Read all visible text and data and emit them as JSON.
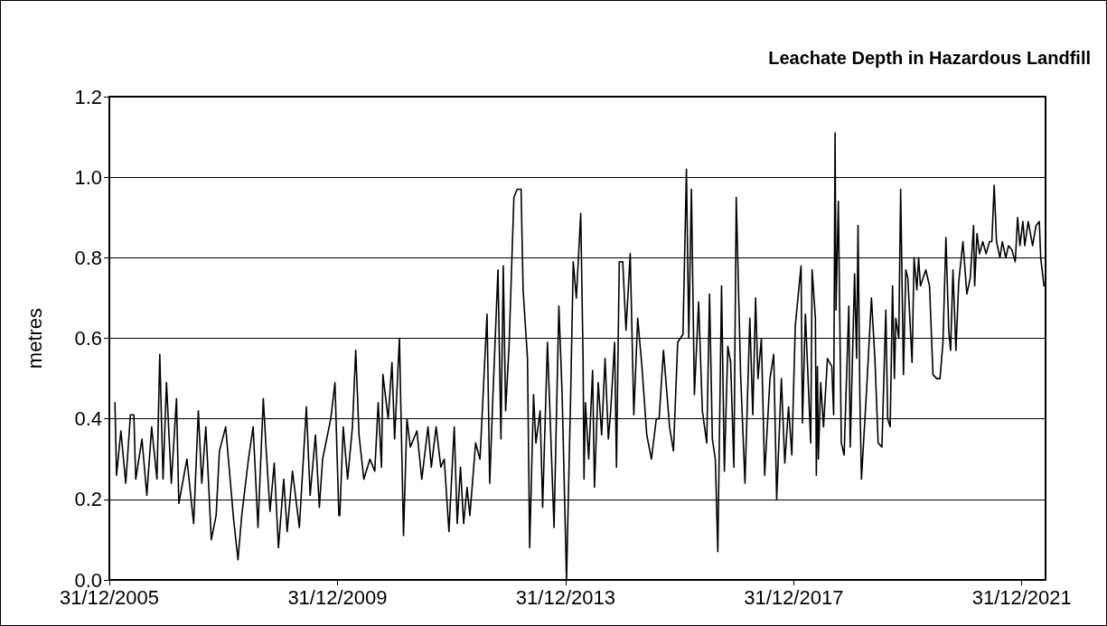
{
  "chart_data": {
    "type": "line",
    "title": "Leachate Depth in Hazardous Landfill",
    "ylabel": "metres",
    "x": [
      "2006-02-05",
      "2006-02-15",
      "2006-03-15",
      "2006-04-15",
      "2006-05-15",
      "2006-06-06",
      "2006-06-18",
      "2006-07-28",
      "2006-08-28",
      "2006-09-28",
      "2006-11-01",
      "2006-11-19",
      "2006-12-10",
      "2007-01-01",
      "2007-02-01",
      "2007-03-06",
      "2007-03-21",
      "2007-05-12",
      "2007-06-24",
      "2007-07-24",
      "2007-08-15",
      "2007-09-10",
      "2007-10-15",
      "2007-11-15",
      "2007-12-06",
      "2008-01-15",
      "2008-02-06",
      "2008-03-06",
      "2008-04-03",
      "2008-04-27",
      "2008-06-09",
      "2008-07-09",
      "2008-08-09",
      "2008-09-12",
      "2008-10-01",
      "2008-10-25",
      "2008-11-21",
      "2008-12-18",
      "2009-01-21",
      "2009-02-12",
      "2009-03-18",
      "2009-05-01",
      "2009-06-15",
      "2009-07-09",
      "2009-08-12",
      "2009-09-06",
      "2009-09-27",
      "2009-11-18",
      "2009-12-15",
      "2010-01-09",
      "2010-01-15",
      "2010-02-06",
      "2010-03-06",
      "2010-04-06",
      "2010-04-27",
      "2010-05-18",
      "2010-06-18",
      "2010-07-27",
      "2010-08-27",
      "2010-09-18",
      "2010-10-09",
      "2010-10-18",
      "2010-11-21",
      "2010-12-15",
      "2011-01-01",
      "2011-02-01",
      "2011-02-27",
      "2011-03-21",
      "2011-04-12",
      "2011-05-24",
      "2011-06-24",
      "2011-08-03",
      "2011-08-24",
      "2011-09-24",
      "2011-10-24",
      "2011-11-15",
      "2011-12-15",
      "2012-01-18",
      "2012-02-06",
      "2012-02-27",
      "2012-03-18",
      "2012-04-09",
      "2012-04-27",
      "2012-06-03",
      "2012-07-01",
      "2012-08-01",
      "2012-08-15",
      "2012-09-01",
      "2012-09-21",
      "2012-10-24",
      "2012-11-12",
      "2012-11-27",
      "2012-12-12",
      "2013-01-03",
      "2013-02-03",
      "2013-02-24",
      "2013-03-21",
      "2013-04-03",
      "2013-05-01",
      "2013-05-15",
      "2013-06-09",
      "2013-06-24",
      "2013-07-21",
      "2013-08-06",
      "2013-09-06",
      "2013-10-18",
      "2013-11-18",
      "2013-12-09",
      "2014-01-06",
      "2014-02-01",
      "2014-02-18",
      "2014-03-10",
      "2014-04-07",
      "2014-04-22",
      "2014-04-28",
      "2014-05-07",
      "2014-05-28",
      "2014-06-22",
      "2014-07-04",
      "2014-07-28",
      "2014-08-19",
      "2014-09-10",
      "2014-10-01",
      "2014-10-16",
      "2014-11-10",
      "2014-11-22",
      "2014-12-10",
      "2015-01-01",
      "2015-01-22",
      "2015-02-18",
      "2015-03-13",
      "2015-04-07",
      "2015-05-04",
      "2015-06-04",
      "2015-07-04",
      "2015-08-04",
      "2015-08-22",
      "2015-09-19",
      "2015-10-28",
      "2015-11-22",
      "2015-12-19",
      "2016-01-22",
      "2016-02-13",
      "2016-02-28",
      "2016-03-16",
      "2016-04-04",
      "2016-05-01",
      "2016-05-25",
      "2016-06-22",
      "2016-07-10",
      "2016-07-28",
      "2016-08-16",
      "2016-09-01",
      "2016-09-25",
      "2016-10-13",
      "2016-11-04",
      "2016-11-22",
      "2016-12-13",
      "2016-12-28",
      "2017-01-25",
      "2017-02-22",
      "2017-03-25",
      "2017-04-13",
      "2017-05-01",
      "2017-05-16",
      "2017-06-07",
      "2017-06-28",
      "2017-08-01",
      "2017-08-25",
      "2017-09-13",
      "2017-10-13",
      "2017-11-04",
      "2017-11-28",
      "2017-12-19",
      "2018-01-10",
      "2018-02-16",
      "2018-02-25",
      "2018-03-16",
      "2018-04-19",
      "2018-04-28",
      "2018-05-19",
      "2018-05-25",
      "2018-06-01",
      "2018-06-07",
      "2018-06-22",
      "2018-07-10",
      "2018-08-04",
      "2018-09-01",
      "2018-09-13",
      "2018-09-22",
      "2018-09-28",
      "2018-10-13",
      "2018-11-01",
      "2018-11-19",
      "2018-12-01",
      "2018-12-19",
      "2018-12-28",
      "2019-01-25",
      "2019-02-07",
      "2019-02-16",
      "2019-02-28",
      "2019-03-10",
      "2019-04-13",
      "2019-05-13",
      "2019-06-04",
      "2019-06-25",
      "2019-07-19",
      "2019-08-13",
      "2019-08-25",
      "2019-09-10",
      "2019-09-25",
      "2019-10-07",
      "2019-10-16",
      "2019-11-04",
      "2019-11-16",
      "2019-12-04",
      "2019-12-19",
      "2020-01-01",
      "2020-01-28",
      "2020-02-10",
      "2020-02-28",
      "2020-03-10",
      "2020-03-22",
      "2020-04-25",
      "2020-05-19",
      "2020-06-10",
      "2020-07-04",
      "2020-07-25",
      "2020-08-13",
      "2020-09-01",
      "2020-09-19",
      "2020-10-01",
      "2020-10-16",
      "2020-11-04",
      "2020-11-22",
      "2020-12-19",
      "2021-01-13",
      "2021-02-04",
      "2021-02-25",
      "2021-03-04",
      "2021-03-19",
      "2021-04-04",
      "2021-04-25",
      "2021-05-16",
      "2021-06-07",
      "2021-06-22",
      "2021-07-07",
      "2021-07-22",
      "2021-08-13",
      "2021-08-28",
      "2021-09-19",
      "2021-10-07",
      "2021-10-28",
      "2021-11-19",
      "2021-12-04",
      "2021-12-19",
      "2022-01-07",
      "2022-01-19",
      "2022-02-10",
      "2022-03-10",
      "2022-04-01",
      "2022-04-22",
      "2022-05-01",
      "2022-05-22"
    ],
    "series": [
      {
        "color": "#000000",
        "values": [
          0.44,
          0.26,
          0.37,
          0.24,
          0.41,
          0.41,
          0.25,
          0.35,
          0.21,
          0.38,
          0.25,
          0.56,
          0.25,
          0.49,
          0.24,
          0.45,
          0.19,
          0.3,
          0.14,
          0.42,
          0.24,
          0.38,
          0.1,
          0.16,
          0.32,
          0.38,
          0.28,
          0.15,
          0.05,
          0.16,
          0.3,
          0.38,
          0.13,
          0.45,
          0.32,
          0.17,
          0.29,
          0.08,
          0.25,
          0.12,
          0.27,
          0.13,
          0.43,
          0.21,
          0.36,
          0.18,
          0.3,
          0.4,
          0.49,
          0.16,
          0.16,
          0.38,
          0.25,
          0.38,
          0.57,
          0.36,
          0.25,
          0.3,
          0.27,
          0.44,
          0.28,
          0.51,
          0.4,
          0.54,
          0.35,
          0.6,
          0.11,
          0.4,
          0.33,
          0.37,
          0.25,
          0.38,
          0.28,
          0.38,
          0.28,
          0.3,
          0.12,
          0.38,
          0.14,
          0.28,
          0.14,
          0.23,
          0.16,
          0.34,
          0.3,
          0.55,
          0.66,
          0.24,
          0.45,
          0.77,
          0.35,
          0.78,
          0.42,
          0.58,
          0.95,
          0.97,
          0.97,
          0.72,
          0.55,
          0.08,
          0.46,
          0.34,
          0.42,
          0.18,
          0.59,
          0.13,
          0.68,
          0.46,
          0.0,
          0.45,
          0.79,
          0.7,
          0.91,
          0.55,
          0.25,
          0.44,
          0.3,
          0.52,
          0.23,
          0.49,
          0.36,
          0.55,
          0.35,
          0.42,
          0.59,
          0.28,
          0.79,
          0.79,
          0.62,
          0.81,
          0.41,
          0.65,
          0.53,
          0.36,
          0.3,
          0.4,
          0.4,
          0.57,
          0.38,
          0.32,
          0.59,
          0.61,
          1.02,
          0.6,
          0.97,
          0.46,
          0.69,
          0.42,
          0.34,
          0.71,
          0.35,
          0.3,
          0.07,
          0.73,
          0.27,
          0.58,
          0.54,
          0.28,
          0.95,
          0.51,
          0.24,
          0.65,
          0.41,
          0.7,
          0.5,
          0.6,
          0.26,
          0.5,
          0.56,
          0.2,
          0.5,
          0.29,
          0.43,
          0.31,
          0.63,
          0.78,
          0.39,
          0.66,
          0.34,
          0.77,
          0.65,
          0.26,
          0.53,
          0.3,
          0.49,
          0.38,
          0.55,
          0.53,
          0.41,
          1.11,
          0.67,
          0.94,
          0.34,
          0.31,
          0.46,
          0.68,
          0.33,
          0.76,
          0.55,
          0.88,
          0.45,
          0.25,
          0.48,
          0.7,
          0.55,
          0.34,
          0.33,
          0.67,
          0.4,
          0.38,
          0.73,
          0.5,
          0.65,
          0.6,
          0.97,
          0.51,
          0.77,
          0.75,
          0.54,
          0.8,
          0.72,
          0.8,
          0.73,
          0.77,
          0.73,
          0.51,
          0.5,
          0.5,
          0.59,
          0.85,
          0.62,
          0.57,
          0.77,
          0.57,
          0.74,
          0.84,
          0.71,
          0.75,
          0.88,
          0.73,
          0.86,
          0.81,
          0.84,
          0.81,
          0.84,
          0.84,
          0.98,
          0.84,
          0.8,
          0.84,
          0.8,
          0.83,
          0.82,
          0.79,
          0.9,
          0.83,
          0.89,
          0.83,
          0.89,
          0.83,
          0.88,
          0.89,
          0.8,
          0.73
        ]
      }
    ],
    "xlim": [
      "2005-12-31",
      "2022-06-01"
    ],
    "xticks": [
      {
        "value": "2005-12-31",
        "label": "31/12/2005"
      },
      {
        "value": "2009-12-31",
        "label": "31/12/2009"
      },
      {
        "value": "2013-12-31",
        "label": "31/12/2013"
      },
      {
        "value": "2017-12-31",
        "label": "31/12/2017"
      },
      {
        "value": "2021-12-31",
        "label": "31/12/2021"
      }
    ],
    "ylim": [
      0,
      1.2
    ],
    "yticks": [
      {
        "value": 0,
        "label": "0.0"
      },
      {
        "value": 0.2,
        "label": "0.2"
      },
      {
        "value": 0.4,
        "label": "0.4"
      },
      {
        "value": 0.6,
        "label": "0.6"
      },
      {
        "value": 0.8,
        "label": "0.8"
      },
      {
        "value": 1,
        "label": "1.0"
      },
      {
        "value": 1.2,
        "label": "1.2"
      }
    ],
    "grid": "y",
    "marker": "none",
    "line_style": "solid"
  }
}
